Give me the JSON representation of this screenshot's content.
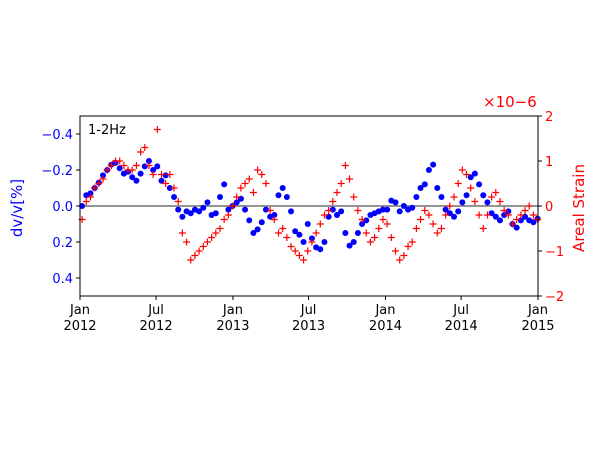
{
  "chart_data": {
    "type": "scatter",
    "title": "",
    "annotation": "1-2Hz",
    "xlabel": "",
    "x_range": [
      "2012-01-01",
      "2015-01-01"
    ],
    "x_ticks": [
      {
        "date": "2012-01-01",
        "line1": "Jan",
        "line2": "2012"
      },
      {
        "date": "2012-07-01",
        "line1": "Jul",
        "line2": "2012"
      },
      {
        "date": "2013-01-01",
        "line1": "Jan",
        "line2": "2013"
      },
      {
        "date": "2013-07-01",
        "line1": "Jul",
        "line2": "2013"
      },
      {
        "date": "2014-01-01",
        "line1": "Jan",
        "line2": "2014"
      },
      {
        "date": "2014-07-01",
        "line1": "Jul",
        "line2": "2014"
      },
      {
        "date": "2015-01-01",
        "line1": "Jan",
        "line2": "2015"
      }
    ],
    "left_axis": {
      "label": "dv/v[%]",
      "color": "#0000ff",
      "inverted": true,
      "ylim": [
        -0.5,
        0.5
      ],
      "ticks": [
        -0.4,
        -0.2,
        0.0,
        0.2,
        0.4
      ],
      "tick_labels": [
        "−0.4",
        "−0.2",
        "0.0",
        "0.2",
        "0.4"
      ]
    },
    "right_axis": {
      "label": "Areal Strain",
      "color": "#ff0000",
      "multiplier": "×10−6",
      "ylim": [
        -2,
        2
      ],
      "ticks": [
        2,
        1,
        0,
        -1,
        -2
      ],
      "tick_labels": [
        "2",
        "1",
        "0",
        "−1",
        "−2"
      ]
    },
    "zero_line": 0,
    "series": [
      {
        "name": "dv/v",
        "axis": "left",
        "marker": "circle",
        "color": "#0000ff",
        "x_days": [
          5,
          15,
          25,
          35,
          45,
          55,
          65,
          75,
          85,
          95,
          105,
          115,
          125,
          135,
          145,
          155,
          165,
          175,
          185,
          195,
          205,
          215,
          225,
          235,
          245,
          255,
          265,
          275,
          285,
          295,
          305,
          315,
          325,
          335,
          345,
          355,
          365,
          375,
          385,
          395,
          405,
          415,
          425,
          435,
          445,
          455,
          465,
          475,
          485,
          495,
          505,
          515,
          525,
          535,
          545,
          555,
          565,
          575,
          585,
          595,
          605,
          615,
          625,
          635,
          645,
          655,
          665,
          675,
          685,
          695,
          705,
          715,
          725,
          735,
          745,
          755,
          765,
          775,
          785,
          795,
          805,
          815,
          825,
          835,
          845,
          855,
          865,
          875,
          885,
          895,
          905,
          915,
          925,
          935,
          945,
          955,
          965,
          975,
          985,
          995,
          1005,
          1015,
          1025,
          1035,
          1045,
          1055,
          1065,
          1075,
          1085,
          1095
        ],
        "values": [
          0.0,
          -0.06,
          -0.07,
          -0.1,
          -0.13,
          -0.17,
          -0.2,
          -0.23,
          -0.24,
          -0.21,
          -0.18,
          -0.19,
          -0.16,
          -0.14,
          -0.18,
          -0.22,
          -0.25,
          -0.2,
          -0.22,
          -0.14,
          -0.17,
          -0.1,
          -0.05,
          0.02,
          0.06,
          0.03,
          0.04,
          0.02,
          0.03,
          0.01,
          -0.02,
          0.05,
          0.04,
          -0.05,
          -0.12,
          0.02,
          0.0,
          -0.02,
          -0.04,
          0.02,
          0.08,
          0.15,
          0.13,
          0.09,
          0.02,
          0.06,
          0.05,
          -0.06,
          -0.1,
          -0.05,
          0.03,
          0.14,
          0.16,
          0.2,
          0.1,
          0.18,
          0.23,
          0.24,
          0.2,
          0.06,
          0.02,
          0.05,
          0.03,
          0.15,
          0.22,
          0.2,
          0.15,
          0.1,
          0.08,
          0.05,
          0.04,
          0.03,
          0.02,
          0.02,
          -0.03,
          -0.02,
          0.03,
          0.0,
          0.02,
          0.01,
          -0.05,
          -0.1,
          -0.12,
          -0.2,
          -0.23,
          -0.1,
          -0.05,
          0.02,
          0.04,
          0.06,
          0.03,
          -0.02,
          -0.06,
          -0.16,
          -0.18,
          -0.12,
          -0.06,
          -0.02,
          0.04,
          0.06,
          0.08,
          0.05,
          0.03,
          0.1,
          0.12,
          0.08,
          0.06,
          0.08,
          0.09,
          0.07
        ]
      },
      {
        "name": "Areal Strain",
        "axis": "right",
        "marker": "plus",
        "color": "#ff0000",
        "x_days": [
          5,
          15,
          25,
          35,
          45,
          55,
          65,
          75,
          85,
          95,
          105,
          115,
          125,
          135,
          145,
          155,
          165,
          175,
          185,
          195,
          205,
          215,
          225,
          235,
          245,
          255,
          265,
          275,
          285,
          295,
          305,
          315,
          325,
          335,
          345,
          355,
          365,
          375,
          385,
          395,
          405,
          415,
          425,
          435,
          445,
          455,
          465,
          475,
          485,
          495,
          505,
          515,
          525,
          535,
          545,
          555,
          565,
          575,
          585,
          595,
          605,
          615,
          625,
          635,
          645,
          655,
          665,
          675,
          685,
          695,
          705,
          715,
          725,
          735,
          745,
          755,
          765,
          775,
          785,
          795,
          805,
          815,
          825,
          835,
          845,
          855,
          865,
          875,
          885,
          895,
          905,
          915,
          925,
          935,
          945,
          955,
          965,
          975,
          985,
          995,
          1005,
          1015,
          1025,
          1035,
          1045,
          1055,
          1065,
          1075,
          1085,
          1095
        ],
        "values": [
          -0.3,
          0.1,
          0.2,
          0.4,
          0.5,
          0.6,
          0.8,
          0.9,
          1.0,
          1.0,
          0.9,
          0.8,
          0.8,
          0.9,
          1.2,
          1.3,
          0.9,
          0.7,
          1.7,
          0.7,
          0.5,
          0.7,
          0.4,
          0.1,
          -0.6,
          -0.8,
          -1.2,
          -1.1,
          -1.0,
          -0.9,
          -0.8,
          -0.7,
          -0.6,
          -0.5,
          -0.3,
          -0.2,
          0.0,
          0.2,
          0.4,
          0.5,
          0.6,
          0.3,
          0.8,
          0.7,
          0.5,
          -0.1,
          -0.3,
          -0.6,
          -0.5,
          -0.7,
          -0.9,
          -1.0,
          -1.1,
          -1.2,
          -1.0,
          -0.8,
          -0.6,
          -0.4,
          -0.2,
          -0.1,
          0.1,
          0.3,
          0.5,
          0.9,
          0.6,
          0.2,
          -0.1,
          -0.3,
          -0.6,
          -0.8,
          -0.7,
          -0.5,
          -0.3,
          -0.4,
          -0.7,
          -1.0,
          -1.2,
          -1.1,
          -0.9,
          -0.8,
          -0.5,
          -0.3,
          -0.1,
          -0.2,
          -0.4,
          -0.6,
          -0.5,
          -0.2,
          0.0,
          0.2,
          0.5,
          0.8,
          0.7,
          0.4,
          0.1,
          -0.2,
          -0.5,
          -0.2,
          0.2,
          0.3,
          0.1,
          -0.1,
          -0.2,
          -0.4,
          -0.3,
          -0.2,
          -0.1,
          0.0,
          -0.2,
          -0.3
        ]
      }
    ]
  }
}
